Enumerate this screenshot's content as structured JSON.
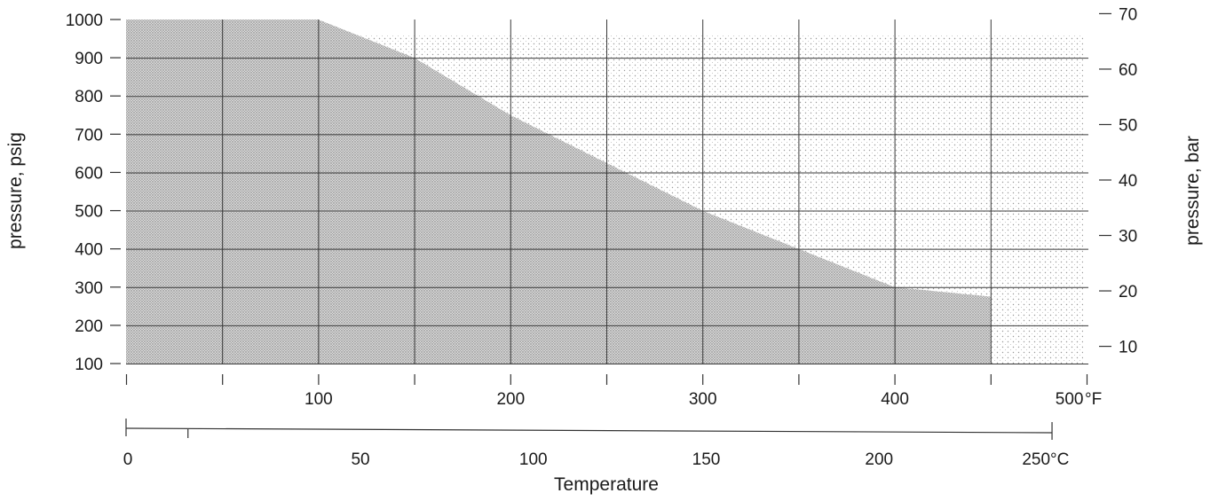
{
  "chart_data": {
    "type": "area",
    "title": "",
    "xlabel": "Temperature",
    "ylabel_left": "pressure, psig",
    "ylabel_right": "pressure, bar",
    "x_unit_f": "°F",
    "x_unit_c": "°C",
    "x_ticks_f": [
      0,
      50,
      100,
      150,
      200,
      250,
      300,
      350,
      400,
      450,
      500
    ],
    "x_tick_labels_f": [
      "",
      "",
      "100",
      "",
      "200",
      "",
      "300",
      "",
      "400",
      "",
      "500"
    ],
    "x_ticks_c": [
      0,
      50,
      100,
      150,
      200,
      250
    ],
    "x_tick_labels_c": [
      "0",
      "50",
      "100",
      "150",
      "200",
      "250"
    ],
    "y_ticks_psig": [
      100,
      200,
      300,
      400,
      500,
      600,
      700,
      800,
      900,
      1000
    ],
    "y_tick_labels_psig": [
      "100",
      "200",
      "300",
      "400",
      "500",
      "600",
      "700",
      "800",
      "900",
      "1000"
    ],
    "y_ticks_bar": [
      10,
      20,
      30,
      40,
      50,
      60,
      70
    ],
    "y_tick_labels_bar": [
      "10",
      "20",
      "30",
      "40",
      "50",
      "60",
      "70"
    ],
    "xlim_f": [
      0,
      500
    ],
    "ylim_psig": [
      100,
      1000
    ],
    "grid": true,
    "series": [
      {
        "temperature_f": [
          0,
          100,
          150,
          200,
          300,
          400,
          450
        ],
        "pressure_psig": [
          1000,
          1000,
          900,
          750,
          500,
          300,
          275
        ]
      }
    ],
    "fill_color": "#bdbdbd",
    "background_fill_color": "#ececec"
  }
}
